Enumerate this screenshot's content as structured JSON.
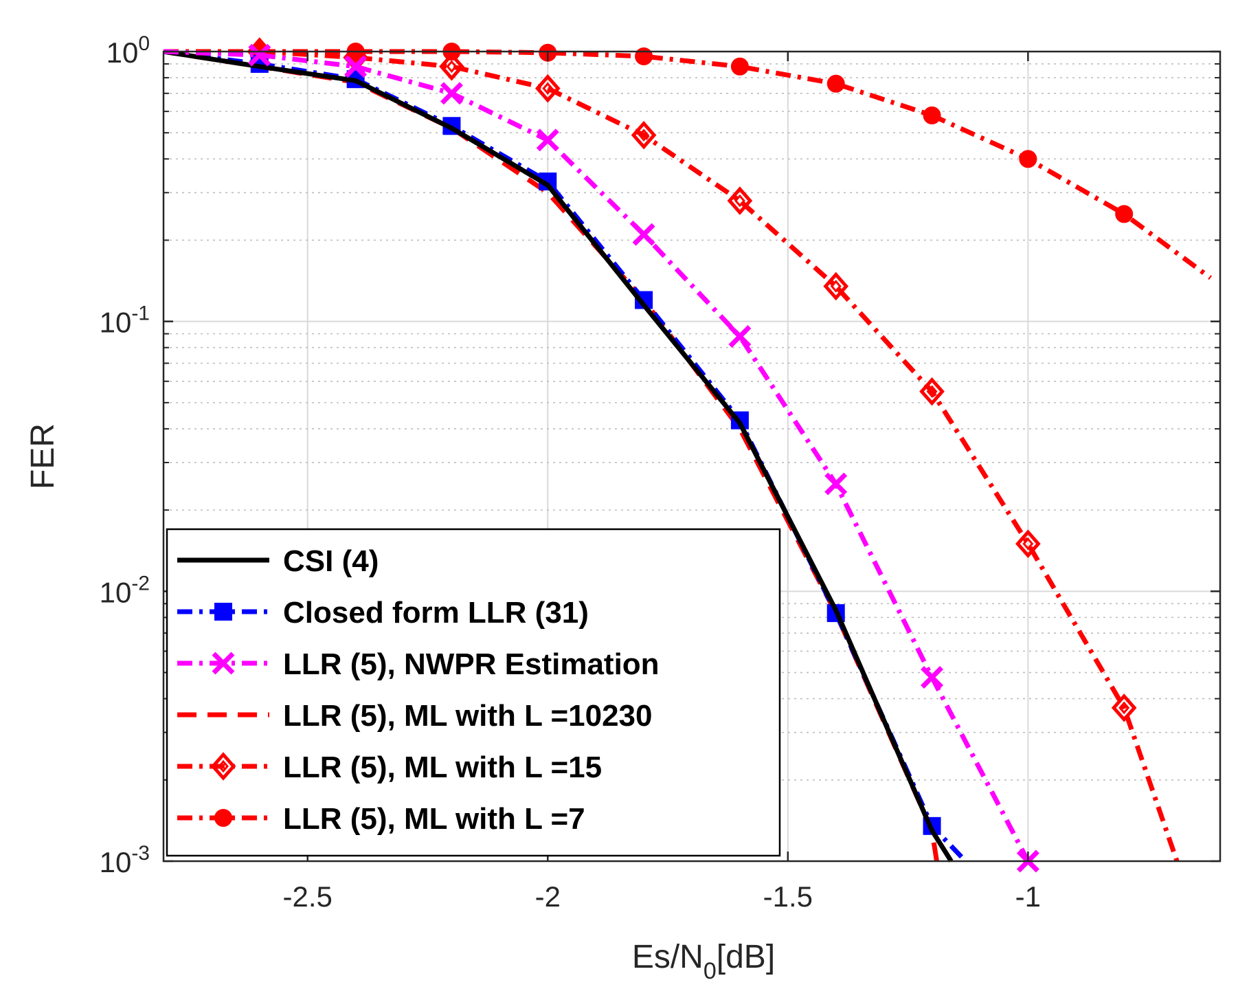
{
  "chart_data": {
    "type": "line",
    "title": "",
    "xlabel_main": "Es/N",
    "xlabel_sub": "0",
    "xlabel_tail": "[dB]",
    "ylabel": "FER",
    "xlim": [
      -2.8,
      -0.6
    ],
    "ylim": [
      0.001,
      1
    ],
    "yscale": "log",
    "grid": true,
    "legend_position": "bottom-left",
    "x_ticks": [
      {
        "value": -2.5,
        "label": "-2.5"
      },
      {
        "value": -2.0,
        "label": "-2"
      },
      {
        "value": -1.5,
        "label": "-1.5"
      },
      {
        "value": -1.0,
        "label": "-1"
      }
    ],
    "y_ticks": [
      {
        "value": 1,
        "base": "10",
        "exp": "0"
      },
      {
        "value": 0.1,
        "base": "10",
        "exp": "-1"
      },
      {
        "value": 0.01,
        "base": "10",
        "exp": "-2"
      },
      {
        "value": 0.001,
        "base": "10",
        "exp": "-3"
      }
    ],
    "series": [
      {
        "name": "CSI (4)",
        "color": "#000000",
        "dash": "solid",
        "marker": "none",
        "x": [
          -2.8,
          -2.6,
          -2.4,
          -2.2,
          -2.0,
          -1.8,
          -1.6,
          -1.4,
          -1.2,
          -1.16
        ],
        "y": [
          1.0,
          0.88,
          0.78,
          0.52,
          0.32,
          0.115,
          0.042,
          0.0085,
          0.0013,
          0.001
        ]
      },
      {
        "name": "Closed form LLR (31)",
        "color": "#0000ff",
        "dash": "dashdot",
        "marker": "square",
        "x": [
          -2.8,
          -2.6,
          -2.4,
          -2.2,
          -2.0,
          -1.8,
          -1.6,
          -1.4,
          -1.2,
          -1.13
        ],
        "y": [
          1.0,
          0.9,
          0.79,
          0.53,
          0.33,
          0.12,
          0.043,
          0.0083,
          0.00135,
          0.001
        ]
      },
      {
        "name": "LLR (5), NWPR Estimation",
        "color": "#ff00ff",
        "dash": "dashdot",
        "marker": "x",
        "x": [
          -2.8,
          -2.6,
          -2.4,
          -2.2,
          -2.0,
          -1.8,
          -1.6,
          -1.4,
          -1.2,
          -1.0
        ],
        "y": [
          1.0,
          0.97,
          0.88,
          0.7,
          0.47,
          0.21,
          0.088,
          0.025,
          0.0048,
          0.001
        ]
      },
      {
        "name": "LLR (5), ML with L =10230",
        "color": "#ff0000",
        "dash": "dashed",
        "marker": "none",
        "x": [
          -2.8,
          -2.6,
          -2.4,
          -2.2,
          -2.0,
          -1.8,
          -1.6,
          -1.4,
          -1.2,
          -1.19
        ],
        "y": [
          1.0,
          0.88,
          0.77,
          0.52,
          0.3,
          0.12,
          0.04,
          0.0083,
          0.0013,
          0.001
        ]
      },
      {
        "name": "LLR (5), ML with L =15",
        "color": "#ff0000",
        "dash": "dashdot",
        "marker": "diamond",
        "x": [
          -2.8,
          -2.6,
          -2.4,
          -2.2,
          -2.0,
          -1.8,
          -1.6,
          -1.4,
          -1.2,
          -1.0,
          -0.8,
          -0.69
        ],
        "y": [
          1.0,
          1.0,
          0.95,
          0.88,
          0.73,
          0.49,
          0.28,
          0.135,
          0.055,
          0.015,
          0.0037,
          0.001
        ]
      },
      {
        "name": "LLR (5), ML with L =7",
        "color": "#ff0000",
        "dash": "dashdot",
        "marker": "circle",
        "x": [
          -2.8,
          -2.6,
          -2.4,
          -2.2,
          -2.0,
          -1.8,
          -1.6,
          -1.4,
          -1.2,
          -1.0,
          -0.8,
          -0.62
        ],
        "y": [
          1.0,
          1.0,
          1.0,
          1.0,
          0.99,
          0.96,
          0.88,
          0.76,
          0.58,
          0.4,
          0.25,
          0.145
        ]
      }
    ]
  }
}
